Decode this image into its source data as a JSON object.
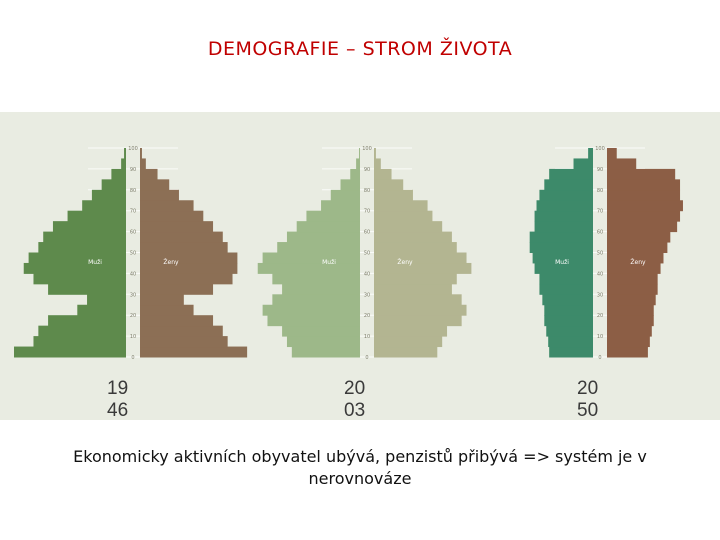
{
  "title": "DEMOGRAFIE – STROM ŽIVOTA",
  "caption": "Ekonomicky aktivních obyvatel ubývá, penzistů přibývá => systém je v nerovnováze",
  "chart_data": [
    {
      "type": "bar",
      "year_label": "1946",
      "y_ticks": [
        0,
        10,
        20,
        30,
        40,
        50,
        60,
        70,
        80,
        90,
        100
      ],
      "male_label": "Muži",
      "female_label": "Ženy",
      "colors": {
        "male": "#5e8a4c",
        "female": "#8c6f55"
      },
      "ages": [
        0,
        5,
        10,
        15,
        20,
        25,
        30,
        35,
        40,
        45,
        50,
        55,
        60,
        65,
        70,
        75,
        80,
        85,
        90,
        95,
        100
      ],
      "male": [
        115,
        95,
        90,
        80,
        50,
        40,
        80,
        95,
        105,
        100,
        90,
        85,
        75,
        60,
        45,
        35,
        25,
        15,
        5,
        2,
        0
      ],
      "female": [
        110,
        90,
        85,
        75,
        55,
        45,
        75,
        95,
        100,
        100,
        90,
        85,
        75,
        65,
        55,
        40,
        30,
        18,
        6,
        2,
        0
      ]
    },
    {
      "type": "bar",
      "year_label": "2003",
      "y_ticks": [
        0,
        10,
        20,
        30,
        40,
        50,
        60,
        70,
        80,
        90,
        100
      ],
      "male_label": "Muži",
      "female_label": "Ženy",
      "colors": {
        "male": "#9db889",
        "female": "#b3b591"
      },
      "ages": [
        0,
        5,
        10,
        15,
        20,
        25,
        30,
        35,
        40,
        45,
        50,
        55,
        60,
        65,
        70,
        75,
        80,
        85,
        90,
        95,
        100
      ],
      "male": [
        70,
        75,
        80,
        95,
        100,
        90,
        80,
        90,
        105,
        100,
        85,
        75,
        65,
        55,
        40,
        30,
        20,
        10,
        4,
        1,
        0
      ],
      "female": [
        65,
        70,
        75,
        90,
        95,
        90,
        80,
        85,
        100,
        95,
        85,
        80,
        70,
        60,
        55,
        40,
        30,
        18,
        7,
        2,
        0
      ]
    },
    {
      "type": "bar",
      "year_label": "2050",
      "y_ticks": [
        0,
        10,
        20,
        30,
        40,
        50,
        60,
        70,
        80,
        90,
        100
      ],
      "male_label": "Muži",
      "female_label": "Ženy",
      "colors": {
        "male": "#3d8a6a",
        "female": "#8c5e45"
      },
      "ages": [
        0,
        5,
        10,
        15,
        20,
        25,
        30,
        35,
        40,
        45,
        50,
        55,
        60,
        65,
        70,
        75,
        80,
        85,
        90,
        95,
        100
      ],
      "male": [
        45,
        46,
        48,
        50,
        50,
        52,
        55,
        55,
        60,
        62,
        65,
        65,
        60,
        60,
        58,
        55,
        50,
        45,
        20,
        5,
        0
      ],
      "female": [
        42,
        44,
        46,
        48,
        48,
        50,
        52,
        52,
        55,
        58,
        62,
        65,
        72,
        75,
        78,
        75,
        75,
        70,
        30,
        10,
        0
      ]
    }
  ]
}
